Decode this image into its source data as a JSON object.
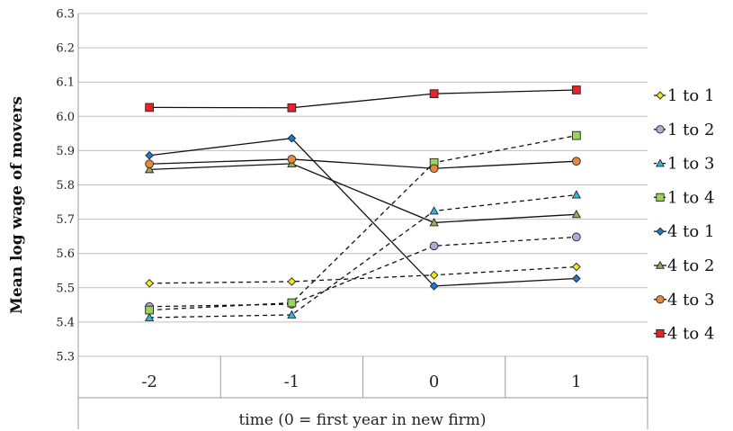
{
  "chart_data": {
    "type": "line",
    "title": "",
    "xlabel": "time (0 = first year in new firm)",
    "ylabel": "Mean log wage of movers",
    "categories": [
      "-2",
      "-1",
      "0",
      "1"
    ],
    "y_ticks": [
      "5.3",
      "5.4",
      "5.5",
      "5.6",
      "5.7",
      "5.8",
      "5.9",
      "6.0",
      "6.1",
      "6.2",
      "6.3"
    ],
    "ylim": [
      5.3,
      6.3
    ],
    "grid": true,
    "legend_position": "right",
    "series": [
      {
        "name": "1 to 1",
        "values": [
          5.513,
          5.518,
          5.537,
          5.561
        ],
        "dash": true,
        "marker": "diamond",
        "color": "#f2ea1a"
      },
      {
        "name": "1 to 2",
        "values": [
          5.445,
          5.452,
          5.622,
          5.648
        ],
        "dash": true,
        "marker": "circle",
        "color": "#b8a6d8"
      },
      {
        "name": "1 to 3",
        "values": [
          5.413,
          5.421,
          5.724,
          5.771
        ],
        "dash": true,
        "marker": "triangle",
        "color": "#31b6e6"
      },
      {
        "name": "1 to 4",
        "values": [
          5.435,
          5.456,
          5.865,
          5.944
        ],
        "dash": true,
        "marker": "square",
        "color": "#9bd35a"
      },
      {
        "name": "4 to 1",
        "values": [
          5.886,
          5.936,
          5.505,
          5.527
        ],
        "dash": false,
        "marker": "diamond",
        "color": "#1f77c8"
      },
      {
        "name": "4 to 2",
        "values": [
          5.845,
          5.862,
          5.69,
          5.714
        ],
        "dash": false,
        "marker": "triangle",
        "color": "#9aab5a"
      },
      {
        "name": "4 to 3",
        "values": [
          5.861,
          5.875,
          5.848,
          5.869
        ],
        "dash": false,
        "marker": "circle",
        "color": "#e8893a"
      },
      {
        "name": "4 to 4",
        "values": [
          6.026,
          6.025,
          6.066,
          6.077
        ],
        "dash": false,
        "marker": "square",
        "color": "#e8212a"
      }
    ]
  }
}
